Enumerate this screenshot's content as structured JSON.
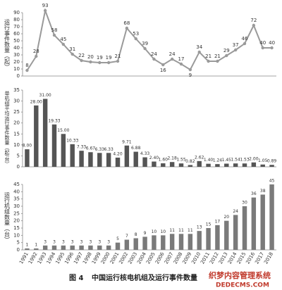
{
  "chart_data": [
    {
      "type": "line",
      "y_label": "运行事件数量（起）",
      "color": "#9a9a9a",
      "values": [
        8,
        28,
        93,
        58,
        45,
        31,
        22,
        20,
        19,
        19,
        21,
        68,
        53,
        39,
        24,
        16,
        24,
        17,
        9,
        34,
        21,
        21,
        29,
        37,
        46,
        72,
        40,
        40
      ],
      "ylim": [
        0,
        90
      ],
      "yticks": [
        0,
        10,
        20,
        30,
        40,
        50,
        60,
        70,
        80,
        90
      ],
      "grid": false
    },
    {
      "type": "bar",
      "y_label": "单机组平均运行事件数量（起/台）",
      "color": "#555555",
      "values": [
        8,
        28,
        31,
        19.33,
        15,
        10.33,
        7.33,
        6.67,
        6.33,
        6.33,
        4.2,
        9.71,
        6.88,
        4.33,
        2.4,
        1.6,
        2.18,
        1.55,
        0.82,
        2.62,
        1.4,
        1.24,
        1.45,
        1.54,
        1.53,
        2,
        1.05,
        0.89
      ],
      "value_labels": [
        "8.00",
        "28.00",
        "31.00",
        "19.33",
        "15.00",
        "10.33",
        "7.33",
        "6.67",
        "6.33",
        "6.33",
        "4.20",
        "9.71",
        "6.88",
        "4.33",
        "2.40",
        "1.60",
        "2.18",
        "1.55",
        "0.82",
        "2.62",
        "1.40",
        "1.24",
        "1.45",
        "1.54",
        "1.53",
        "2.00",
        "1.05",
        "0.89"
      ],
      "ylim": [
        0,
        35
      ],
      "yticks": [
        0,
        5,
        10,
        15,
        20,
        25,
        30,
        35
      ],
      "grid": false
    },
    {
      "type": "bar",
      "y_label": "运行机组数量（台）",
      "color": "#7a7a7a",
      "categories": [
        "1991",
        "1992",
        "1993",
        "1994",
        "1995",
        "1996",
        "1997",
        "1998",
        "1999",
        "2000",
        "2001",
        "2002",
        "2003",
        "2004",
        "2005",
        "2006",
        "2007",
        "2008",
        "2009",
        "2010",
        "2011",
        "2012",
        "2013",
        "2014",
        "2015",
        "2016",
        "2017",
        "2018"
      ],
      "values": [
        1,
        1,
        3,
        3,
        3,
        3,
        3,
        3,
        3,
        3,
        5,
        7,
        8,
        9,
        10,
        10,
        11,
        11,
        11,
        13,
        15,
        17,
        20,
        24,
        30,
        36,
        38,
        45
      ],
      "ylim": [
        0,
        45
      ],
      "yticks": [
        0,
        5,
        10,
        15,
        20,
        25,
        30,
        35,
        40,
        45
      ],
      "grid": false
    }
  ],
  "caption": {
    "number": "图 4",
    "text": "中国运行核电机组及运行事件数量"
  },
  "watermark": {
    "line1": "织梦内容管理系统",
    "line2": "DEDECMS.COM"
  }
}
